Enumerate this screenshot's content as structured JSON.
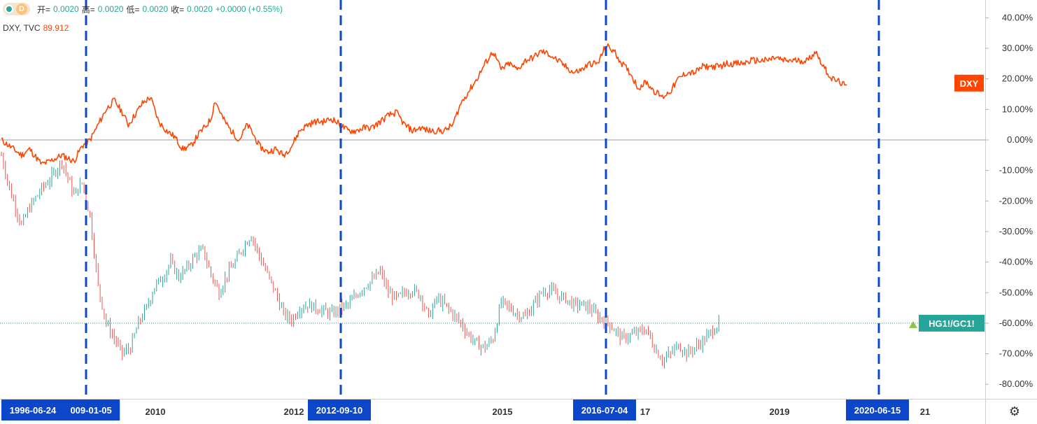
{
  "legend": {
    "label_open": "开=",
    "open": "0.0020",
    "label_high": "高=",
    "high": "0.0020",
    "label_low": "低=",
    "low": "0.0020",
    "label_close": "收=",
    "close": "0.0020",
    "change": "+0.0000 (+0.55%)",
    "timeframe": "D"
  },
  "compare": {
    "symbol": "DXY, TVC",
    "value": "89.912"
  },
  "colors": {
    "dxy": "#ff4500",
    "copper_gold": "#26a69a",
    "up": "#26a69a",
    "down": "#ef5350",
    "marker": "#0d47c9"
  },
  "chart_data": {
    "type": "line",
    "y_unit": "%",
    "y_ticks": [
      "40.00%",
      "30.00%",
      "20.00%",
      "10.00%",
      "0.00%",
      "-10.00%",
      "-20.00%",
      "-30.00%",
      "-40.00%",
      "-50.00%",
      "-60.00%",
      "-70.00%",
      "-80.00%"
    ],
    "x_ticks": [
      "2010",
      "2012",
      "2015",
      "2019"
    ],
    "x_ticks_partial": [
      "17",
      "21"
    ],
    "series": [
      {
        "name": "DXY",
        "label": "DXY",
        "points": [
          [
            2005.8,
            0
          ],
          [
            2006.0,
            -2
          ],
          [
            2006.3,
            -5
          ],
          [
            2006.5,
            -3
          ],
          [
            2006.8,
            -8
          ],
          [
            2007.0,
            -7
          ],
          [
            2007.3,
            -5
          ],
          [
            2007.6,
            -7
          ],
          [
            2007.8,
            -2
          ],
          [
            2008.0,
            0
          ],
          [
            2008.2,
            5
          ],
          [
            2008.4,
            10
          ],
          [
            2008.6,
            13
          ],
          [
            2008.8,
            9
          ],
          [
            2008.95,
            5
          ],
          [
            2009.1,
            8
          ],
          [
            2009.3,
            12
          ],
          [
            2009.5,
            14
          ],
          [
            2009.7,
            6
          ],
          [
            2009.9,
            3
          ],
          [
            2010.1,
            1
          ],
          [
            2010.3,
            -3
          ],
          [
            2010.5,
            -2
          ],
          [
            2010.7,
            2
          ],
          [
            2010.9,
            5
          ],
          [
            2011.0,
            7
          ],
          [
            2011.1,
            13
          ],
          [
            2011.3,
            7
          ],
          [
            2011.5,
            3
          ],
          [
            2011.7,
            0
          ],
          [
            2011.9,
            5
          ],
          [
            2012.0,
            3
          ],
          [
            2012.2,
            -2
          ],
          [
            2012.4,
            -4
          ],
          [
            2012.6,
            -3
          ],
          [
            2012.8,
            -5
          ],
          [
            2013.0,
            -2
          ],
          [
            2013.2,
            3
          ],
          [
            2013.4,
            5
          ],
          [
            2013.6,
            6
          ],
          [
            2013.8,
            6
          ],
          [
            2014.0,
            7
          ],
          [
            2014.2,
            5
          ],
          [
            2014.4,
            3
          ],
          [
            2014.6,
            3
          ],
          [
            2014.8,
            4
          ],
          [
            2015.0,
            4
          ],
          [
            2015.2,
            6
          ],
          [
            2015.4,
            8
          ],
          [
            2015.6,
            9
          ],
          [
            2015.8,
            5
          ],
          [
            2016.0,
            3
          ],
          [
            2016.2,
            4
          ],
          [
            2016.4,
            3
          ],
          [
            2016.6,
            3
          ],
          [
            2016.8,
            3
          ],
          [
            2017.0,
            5
          ],
          [
            2017.2,
            12
          ],
          [
            2017.4,
            16
          ],
          [
            2017.6,
            20
          ],
          [
            2017.8,
            25
          ],
          [
            2018.0,
            29
          ],
          [
            2018.2,
            23
          ],
          [
            2018.4,
            25
          ],
          [
            2018.6,
            23
          ],
          [
            2018.8,
            26
          ],
          [
            2019.0,
            27
          ],
          [
            2019.2,
            29
          ],
          [
            2019.4,
            28
          ],
          [
            2019.6,
            26
          ],
          [
            2019.8,
            24
          ],
          [
            2020.0,
            22
          ],
          [
            2020.2,
            23
          ],
          [
            2020.4,
            25
          ],
          [
            2020.6,
            25
          ],
          [
            2020.8,
            31
          ],
          [
            2021.0,
            29
          ],
          [
            2021.2,
            25
          ],
          [
            2021.4,
            22
          ],
          [
            2021.6,
            17
          ],
          [
            2021.8,
            19
          ],
          [
            2022.0,
            16
          ],
          [
            2022.2,
            14
          ],
          [
            2022.4,
            16
          ],
          [
            2022.6,
            20
          ],
          [
            2022.8,
            22
          ],
          [
            2023.0,
            22
          ],
          [
            2023.2,
            24
          ],
          [
            2023.4,
            24
          ],
          [
            2023.6,
            24
          ],
          [
            2023.8,
            25
          ],
          [
            2024.0,
            25
          ],
          [
            2024.2,
            25
          ],
          [
            2024.4,
            26
          ],
          [
            2024.6,
            26
          ],
          [
            2024.8,
            26
          ],
          [
            2025.0,
            27
          ],
          [
            2025.2,
            26
          ],
          [
            2025.4,
            26
          ],
          [
            2025.6,
            26
          ],
          [
            2025.8,
            26
          ],
          [
            2026.0,
            29
          ],
          [
            2026.2,
            24
          ],
          [
            2026.4,
            20
          ],
          [
            2026.6,
            19
          ],
          [
            2026.8,
            17
          ]
        ]
      },
      {
        "name": "HG1!/GC1!",
        "label": "HG1!/GC1!",
        "points": [
          [
            2005.8,
            -5
          ],
          [
            2006.0,
            -16
          ],
          [
            2006.3,
            -28
          ],
          [
            2006.5,
            -22
          ],
          [
            2006.8,
            -16
          ],
          [
            2007.0,
            -13
          ],
          [
            2007.3,
            -7
          ],
          [
            2007.6,
            -18
          ],
          [
            2007.8,
            -14
          ],
          [
            2008.0,
            -25
          ],
          [
            2008.2,
            -48
          ],
          [
            2008.4,
            -60
          ],
          [
            2008.6,
            -65
          ],
          [
            2008.8,
            -70
          ],
          [
            2009.0,
            -68
          ],
          [
            2009.2,
            -60
          ],
          [
            2009.4,
            -55
          ],
          [
            2009.6,
            -48
          ],
          [
            2009.8,
            -45
          ],
          [
            2010.0,
            -40
          ],
          [
            2010.2,
            -45
          ],
          [
            2010.4,
            -42
          ],
          [
            2010.6,
            -38
          ],
          [
            2010.8,
            -36
          ],
          [
            2011.0,
            -44
          ],
          [
            2011.2,
            -50
          ],
          [
            2011.4,
            -44
          ],
          [
            2011.6,
            -40
          ],
          [
            2011.8,
            -35
          ],
          [
            2012.0,
            -31
          ],
          [
            2012.2,
            -38
          ],
          [
            2012.4,
            -44
          ],
          [
            2012.6,
            -50
          ],
          [
            2012.8,
            -57
          ],
          [
            2013.0,
            -59
          ],
          [
            2013.2,
            -55
          ],
          [
            2013.4,
            -54
          ],
          [
            2013.6,
            -55
          ],
          [
            2013.8,
            -56
          ],
          [
            2014.0,
            -57
          ],
          [
            2014.2,
            -55
          ],
          [
            2014.4,
            -54
          ],
          [
            2014.6,
            -51
          ],
          [
            2014.8,
            -48
          ],
          [
            2015.0,
            -46
          ],
          [
            2015.2,
            -43
          ],
          [
            2015.4,
            -50
          ],
          [
            2015.6,
            -52
          ],
          [
            2015.8,
            -50
          ],
          [
            2016.0,
            -49
          ],
          [
            2016.2,
            -51
          ],
          [
            2016.4,
            -58
          ],
          [
            2016.6,
            -52
          ],
          [
            2016.8,
            -54
          ],
          [
            2017.0,
            -57
          ],
          [
            2017.2,
            -60
          ],
          [
            2017.4,
            -64
          ],
          [
            2017.6,
            -67
          ],
          [
            2017.8,
            -68
          ],
          [
            2018.0,
            -65
          ],
          [
            2018.2,
            -53
          ],
          [
            2018.4,
            -55
          ],
          [
            2018.6,
            -57
          ],
          [
            2018.8,
            -58
          ],
          [
            2019.0,
            -54
          ],
          [
            2019.2,
            -50
          ],
          [
            2019.4,
            -49
          ],
          [
            2019.6,
            -51
          ],
          [
            2019.8,
            -52
          ],
          [
            2020.0,
            -54
          ],
          [
            2020.2,
            -54
          ],
          [
            2020.4,
            -55
          ],
          [
            2020.6,
            -58
          ],
          [
            2020.8,
            -59
          ],
          [
            2021.0,
            -62
          ],
          [
            2021.2,
            -65
          ],
          [
            2021.4,
            -64
          ],
          [
            2021.6,
            -63
          ],
          [
            2021.8,
            -62
          ],
          [
            2022.0,
            -68
          ],
          [
            2022.2,
            -72
          ],
          [
            2022.4,
            -70
          ],
          [
            2022.6,
            -67
          ],
          [
            2022.8,
            -70
          ],
          [
            2023.0,
            -68
          ],
          [
            2023.2,
            -66
          ],
          [
            2023.4,
            -63
          ],
          [
            2023.6,
            -60
          ]
        ]
      }
    ]
  },
  "markers": [
    {
      "label": "1996-06-24"
    },
    {
      "label": "009-01-05"
    },
    {
      "label": "2012-09-10"
    },
    {
      "label": "2016-07-04"
    },
    {
      "label": "2020-06-15"
    }
  ],
  "settings_icon": "gear-icon"
}
